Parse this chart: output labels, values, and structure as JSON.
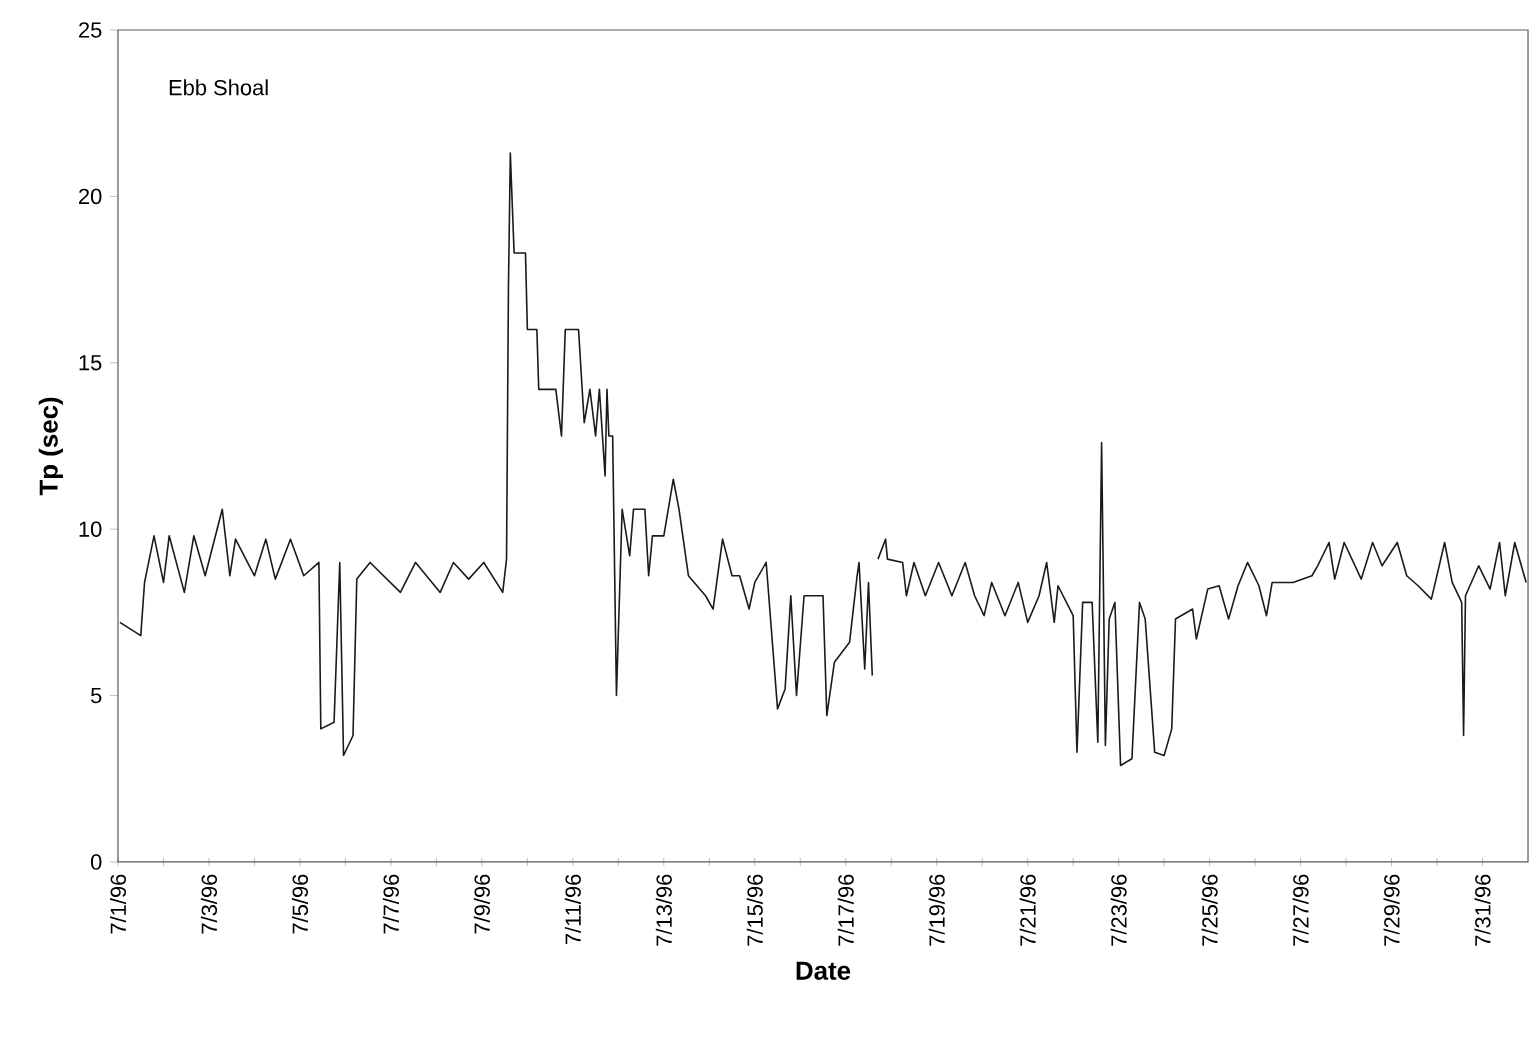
{
  "chart_data": {
    "type": "line",
    "xlabel": "Date",
    "ylabel": "Tp (sec)",
    "annotations": [
      "Ebb Shoal"
    ],
    "color": "#1a1a1a",
    "xlim": [
      "1996-07-01",
      "1996-08-01"
    ],
    "ylim": [
      0,
      25
    ],
    "yticks": [
      0,
      5,
      10,
      15,
      20,
      25
    ],
    "xticks": [
      {
        "value": "1996-07-01",
        "label": "7/1/96"
      },
      {
        "value": "1996-07-02",
        "label": null
      },
      {
        "value": "1996-07-03",
        "label": "7/3/96"
      },
      {
        "value": "1996-07-04",
        "label": null
      },
      {
        "value": "1996-07-05",
        "label": "7/5/96"
      },
      {
        "value": "1996-07-06",
        "label": null
      },
      {
        "value": "1996-07-07",
        "label": "7/7/96"
      },
      {
        "value": "1996-07-08",
        "label": null
      },
      {
        "value": "1996-07-09",
        "label": "7/9/96"
      },
      {
        "value": "1996-07-10",
        "label": null
      },
      {
        "value": "1996-07-11",
        "label": "7/11/96"
      },
      {
        "value": "1996-07-12",
        "label": null
      },
      {
        "value": "1996-07-13",
        "label": "7/13/96"
      },
      {
        "value": "1996-07-14",
        "label": null
      },
      {
        "value": "1996-07-15",
        "label": "7/15/96"
      },
      {
        "value": "1996-07-16",
        "label": null
      },
      {
        "value": "1996-07-17",
        "label": "7/17/96"
      },
      {
        "value": "1996-07-18",
        "label": null
      },
      {
        "value": "1996-07-19",
        "label": "7/19/96"
      },
      {
        "value": "1996-07-20",
        "label": null
      },
      {
        "value": "1996-07-21",
        "label": "7/21/96"
      },
      {
        "value": "1996-07-22",
        "label": null
      },
      {
        "value": "1996-07-23",
        "label": "7/23/96"
      },
      {
        "value": "1996-07-24",
        "label": null
      },
      {
        "value": "1996-07-25",
        "label": "7/25/96"
      },
      {
        "value": "1996-07-26",
        "label": null
      },
      {
        "value": "1996-07-27",
        "label": "7/27/96"
      },
      {
        "value": "1996-07-28",
        "label": null
      },
      {
        "value": "1996-07-29",
        "label": "7/29/96"
      },
      {
        "value": "1996-07-30",
        "label": null
      },
      {
        "value": "1996-07-31",
        "label": "7/31/96"
      }
    ],
    "x": [
      "1996-07-01T01:00",
      "1996-07-01T12:00",
      "1996-07-01T14:00",
      "1996-07-01T19:00",
      "1996-07-02T00:00",
      "1996-07-02T03:00",
      "1996-07-02T11:00",
      "1996-07-02T16:00",
      "1996-07-02T22:00",
      "1996-07-03T07:00",
      "1996-07-03T11:00",
      "1996-07-03T14:00",
      "1996-07-04T00:00",
      "1996-07-04T06:00",
      "1996-07-04T11:00",
      "1996-07-04T19:00",
      "1996-07-05T02:00",
      "1996-07-05T10:00",
      "1996-07-05T11:00",
      "1996-07-05T18:00",
      "1996-07-05T21:00",
      "1996-07-05T23:00",
      "1996-07-06T04:00",
      "1996-07-06T06:00",
      "1996-07-06T13:00",
      "1996-07-07T05:00",
      "1996-07-07T13:00",
      "1996-07-08T02:00",
      "1996-07-08T09:00",
      "1996-07-08T17:00",
      "1996-07-09T01:00",
      "1996-07-09T11:00",
      "1996-07-09T13:00",
      "1996-07-09T14:00",
      "1996-07-09T15:00",
      "1996-07-09T17:00",
      "1996-07-09T23:00",
      "1996-07-10T00:00",
      "1996-07-10T05:00",
      "1996-07-10T06:00",
      "1996-07-10T15:00",
      "1996-07-10T18:00",
      "1996-07-10T20:00",
      "1996-07-11T03:00",
      "1996-07-11T06:00",
      "1996-07-11T09:00",
      "1996-07-11T12:00",
      "1996-07-11T14:00",
      "1996-07-11T17:00",
      "1996-07-11T18:00",
      "1996-07-11T19:00",
      "1996-07-11T21:00",
      "1996-07-11T23:00",
      "1996-07-12T02:00",
      "1996-07-12T06:00",
      "1996-07-12T08:00",
      "1996-07-12T14:00",
      "1996-07-12T16:00",
      "1996-07-12T18:00",
      "1996-07-13T00:00",
      "1996-07-13T05:00",
      "1996-07-13T08:00",
      "1996-07-13T13:00",
      "1996-07-13T22:00",
      "1996-07-14T02:00",
      "1996-07-14T07:00",
      "1996-07-14T12:00",
      "1996-07-14T16:00",
      "1996-07-14T21:00",
      "1996-07-15T00:00",
      "1996-07-15T06:00",
      "1996-07-15T12:00",
      "1996-07-15T16:00",
      "1996-07-15T19:00",
      "1996-07-15T22:00",
      "1996-07-16T02:00",
      "1996-07-16T12:00",
      "1996-07-16T14:00",
      "1996-07-16T18:00",
      "1996-07-17T02:00",
      "1996-07-17T06:00",
      "1996-07-17T07:00",
      "1996-07-17T10:00",
      "1996-07-17T12:00",
      "1996-07-17T14:00",
      "1996-07-17T15:00",
      "1996-07-17T17:00",
      "1996-07-17T21:00",
      "1996-07-17T22:00",
      "1996-07-18T06:00",
      "1996-07-18T08:00",
      "1996-07-18T12:00",
      "1996-07-18T18:00",
      "1996-07-19T01:00",
      "1996-07-19T08:00",
      "1996-07-19T15:00",
      "1996-07-19T20:00",
      "1996-07-20T01:00",
      "1996-07-20T05:00",
      "1996-07-20T12:00",
      "1996-07-20T19:00",
      "1996-07-21T00:00",
      "1996-07-21T06:00",
      "1996-07-21T10:00",
      "1996-07-21T14:00",
      "1996-07-21T16:00",
      "1996-07-22T00:00",
      "1996-07-22T02:00",
      "1996-07-22T05:00",
      "1996-07-22T10:00",
      "1996-07-22T13:00",
      "1996-07-22T15:00",
      "1996-07-22T17:00",
      "1996-07-22T19:00",
      "1996-07-22T22:00",
      "1996-07-23T01:00",
      "1996-07-23T07:00",
      "1996-07-23T11:00",
      "1996-07-23T14:00",
      "1996-07-23T19:00",
      "1996-07-24T00:00",
      "1996-07-24T04:00",
      "1996-07-24T06:00",
      "1996-07-24T15:00",
      "1996-07-24T17:00",
      "1996-07-24T23:00",
      "1996-07-25T05:00",
      "1996-07-25T10:00",
      "1996-07-25T15:00",
      "1996-07-25T20:00",
      "1996-07-26T02:00",
      "1996-07-26T06:00",
      "1996-07-26T09:00",
      "1996-07-26T20:00",
      "1996-07-27T06:00",
      "1996-07-27T09:00",
      "1996-07-27T15:00",
      "1996-07-27T18:00",
      "1996-07-27T23:00",
      "1996-07-28T08:00",
      "1996-07-28T14:00",
      "1996-07-28T19:00",
      "1996-07-29T03:00",
      "1996-07-29T08:00",
      "1996-07-29T14:00",
      "1996-07-29T21:00",
      "1996-07-30T04:00",
      "1996-07-30T08:00",
      "1996-07-30T13:00",
      "1996-07-30T14:00",
      "1996-07-30T15:00",
      "1996-07-30T22:00",
      "1996-07-31T04:00",
      "1996-07-31T09:00",
      "1996-07-31T12:00",
      "1996-07-31T17:00",
      "1996-07-31T23:00"
    ],
    "values": [
      7.2,
      6.8,
      8.4,
      9.8,
      8.4,
      9.8,
      8.1,
      9.8,
      8.6,
      10.6,
      8.6,
      9.7,
      8.6,
      9.7,
      8.5,
      9.7,
      8.6,
      9.0,
      4.0,
      4.2,
      9.0,
      3.2,
      3.8,
      8.5,
      9.0,
      8.1,
      9.0,
      8.1,
      9.0,
      8.5,
      9.0,
      8.1,
      9.1,
      17.2,
      21.3,
      18.3,
      18.3,
      16.0,
      16.0,
      14.2,
      14.2,
      12.8,
      16.0,
      16.0,
      13.2,
      14.2,
      12.8,
      14.2,
      11.6,
      14.2,
      12.8,
      12.8,
      5.0,
      10.6,
      9.2,
      10.6,
      10.6,
      8.6,
      9.8,
      9.8,
      11.5,
      10.6,
      8.6,
      8.0,
      7.6,
      9.7,
      8.6,
      8.6,
      7.6,
      8.4,
      9.0,
      4.6,
      5.2,
      8.0,
      5.0,
      8.0,
      8.0,
      4.4,
      6.0,
      6.6,
      8.6,
      9.0,
      5.8,
      8.4,
      5.6,
      null,
      9.1,
      9.7,
      9.1,
      9.0,
      8.0,
      9.0,
      8.0,
      9.0,
      8.0,
      9.0,
      8.0,
      7.4,
      8.4,
      7.4,
      8.4,
      7.2,
      8.0,
      9.0,
      7.2,
      8.3,
      7.4,
      3.3,
      7.8,
      7.8,
      3.6,
      12.6,
      3.5,
      7.3,
      7.8,
      2.9,
      3.1,
      7.8,
      7.3,
      3.3,
      3.2,
      4.0,
      7.3,
      7.6,
      6.7,
      8.2,
      8.3,
      7.3,
      8.3,
      9.0,
      8.3,
      7.4,
      8.4,
      8.4,
      8.6,
      8.9,
      9.6,
      8.5,
      9.6,
      8.5,
      9.6,
      8.9,
      9.6,
      8.6,
      8.3,
      7.9,
      9.6,
      8.4,
      7.8,
      3.8,
      8.0,
      8.9,
      8.2,
      9.6,
      8.0,
      9.6,
      8.4
    ]
  }
}
